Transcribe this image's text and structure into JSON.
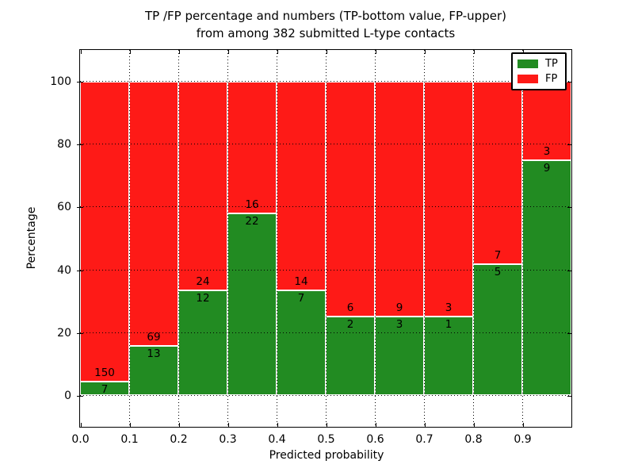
{
  "title": {
    "line1": "TP /FP percentage and numbers (TP-bottom value, FP-upper)",
    "line2": "from among 382 submitted L-type contacts"
  },
  "axes": {
    "ylabel": "Percentage",
    "xlabel": "Predicted probability",
    "yticks": [
      0,
      20,
      40,
      60,
      80,
      100
    ],
    "xtick_labels": [
      "0.0",
      "0.1",
      "0.2",
      "0.3",
      "0.4",
      "0.5",
      "0.6",
      "0.7",
      "0.8",
      "0.9"
    ],
    "ylim": [
      -10,
      110
    ],
    "xlim": [
      0,
      1
    ]
  },
  "legend": [
    {
      "label": "TP",
      "color": "#228b22"
    },
    {
      "label": "FP",
      "color": "#fe1a17"
    }
  ],
  "colors": {
    "tp": "#228b22",
    "fp": "#fe1a17",
    "grid": "#000000",
    "frame": "#000000",
    "bar_edge": "#ffffff",
    "background": "#ffffff"
  },
  "chart_data": {
    "type": "bar",
    "stacked": true,
    "normalized_to": "percentage of bin total",
    "title": "TP /FP percentage and numbers (TP-bottom value, FP-upper) from among 382 submitted L-type contacts",
    "xlabel": "Predicted probability",
    "ylabel": "Percentage",
    "xlim": [
      0,
      1
    ],
    "ylim": [
      -10,
      110
    ],
    "grid": "dotted",
    "legend_position": "upper right",
    "total_contacts": 382,
    "bin_width": 0.1,
    "categories": [
      "0.0-0.1",
      "0.1-0.2",
      "0.2-0.3",
      "0.3-0.4",
      "0.4-0.5",
      "0.5-0.6",
      "0.6-0.7",
      "0.7-0.8",
      "0.8-0.9",
      "0.9-1.0"
    ],
    "series": [
      {
        "name": "TP",
        "color": "#228b22",
        "counts": [
          7,
          13,
          12,
          22,
          7,
          2,
          3,
          1,
          5,
          9
        ]
      },
      {
        "name": "FP",
        "color": "#fe1a17",
        "counts": [
          150,
          69,
          24,
          16,
          14,
          6,
          9,
          3,
          7,
          3
        ]
      }
    ],
    "tp_percent": [
      4.46,
      15.85,
      33.33,
      57.89,
      33.33,
      25.0,
      25.0,
      25.0,
      41.67,
      75.0
    ],
    "bins": [
      {
        "range": [
          0.0,
          0.1
        ],
        "tp": 7,
        "fp": 150
      },
      {
        "range": [
          0.1,
          0.2
        ],
        "tp": 13,
        "fp": 69
      },
      {
        "range": [
          0.2,
          0.3
        ],
        "tp": 12,
        "fp": 24
      },
      {
        "range": [
          0.3,
          0.4
        ],
        "tp": 22,
        "fp": 16
      },
      {
        "range": [
          0.4,
          0.5
        ],
        "tp": 7,
        "fp": 14
      },
      {
        "range": [
          0.5,
          0.6
        ],
        "tp": 2,
        "fp": 6
      },
      {
        "range": [
          0.6,
          0.7
        ],
        "tp": 3,
        "fp": 9
      },
      {
        "range": [
          0.7,
          0.8
        ],
        "tp": 1,
        "fp": 3
      },
      {
        "range": [
          0.8,
          0.9
        ],
        "tp": 5,
        "fp": 7
      },
      {
        "range": [
          0.9,
          1.0
        ],
        "tp": 9,
        "fp": 3
      }
    ]
  }
}
